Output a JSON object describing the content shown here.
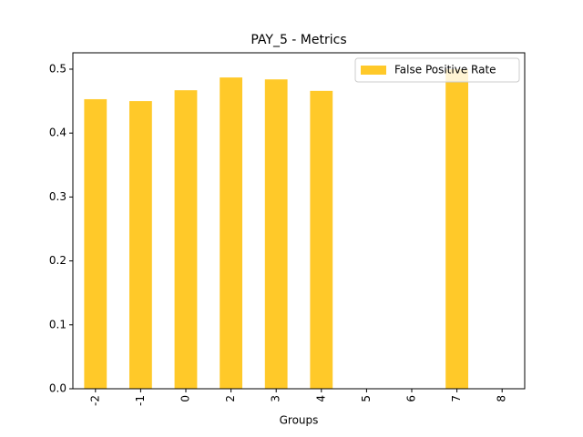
{
  "chart_data": {
    "type": "bar",
    "title": "PAY_5 - Metrics",
    "x_label": "Groups",
    "categories": [
      "-2",
      "-1",
      "0",
      "2",
      "3",
      "4",
      "5",
      "6",
      "7",
      "8"
    ],
    "series": [
      {
        "name": "False Positive Rate",
        "color": "#ffc929",
        "values": [
          0.453,
          0.45,
          0.467,
          0.487,
          0.484,
          0.466,
          0,
          0,
          0.5,
          0
        ]
      }
    ],
    "ylim": [
      0,
      0.5256
    ],
    "yticks": [
      {
        "value": 0,
        "label": "0.0"
      },
      0.1,
      0.2,
      0.3,
      0.4,
      0.5
    ],
    "legend": "upper right"
  }
}
